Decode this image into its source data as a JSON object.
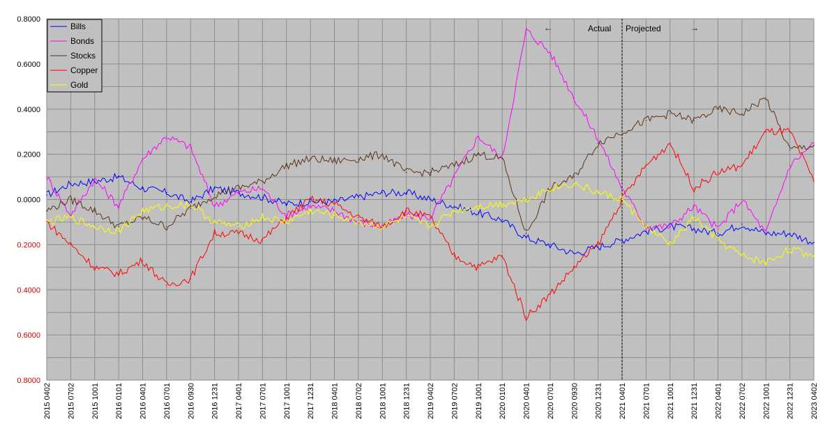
{
  "chart_data": {
    "type": "line",
    "ylim": [
      -0.8,
      0.8
    ],
    "y_ticks": [
      "0.8000",
      "0.6000",
      "0.4000",
      "0.2000",
      "0.0000",
      "0.2000",
      "0.4000",
      "0.6000",
      "0.8000"
    ],
    "x_ticks": [
      "2015 0402",
      "2015 0702",
      "2015 1001",
      "2016 0101",
      "2016 0401",
      "2016 0701",
      "2016 0930",
      "2016 1231",
      "2017 0401",
      "2017 0701",
      "2017 1001",
      "2017 1231",
      "2018 0401",
      "2018 0702",
      "2018 1001",
      "2018 1231",
      "2019 0402",
      "2019 0702",
      "2019 1001",
      "2020 0101",
      "2020 0401",
      "2020 0701",
      "2020 0930",
      "2020 1231",
      "2021 0401",
      "2021 0701",
      "2021 1001",
      "2021 1231",
      "2022 0401",
      "2022 0702",
      "2022 1001",
      "2022 1231",
      "2023 0402"
    ],
    "grid": true,
    "legend_position": "top-left",
    "plot_background": "#c0c0c0",
    "divider_at": "2021 0401",
    "annotations": {
      "actual": "Actual",
      "projected": "Projected",
      "left_arrow": "←",
      "right_arrow": "→"
    },
    "series": [
      {
        "name": "Bills",
        "color": "#0000ff",
        "values": [
          0.02,
          0.07,
          0.08,
          0.1,
          0.05,
          0.03,
          -0.01,
          0.05,
          0.03,
          0.01,
          -0.02,
          -0.01,
          -0.01,
          0.01,
          0.03,
          0.03,
          0.0,
          -0.03,
          -0.06,
          -0.09,
          -0.17,
          -0.2,
          -0.24,
          -0.21,
          -0.18,
          -0.14,
          -0.12,
          -0.13,
          -0.15,
          -0.11,
          -0.15,
          -0.15,
          -0.19
        ]
      },
      {
        "name": "Bonds",
        "color": "#ff00ff",
        "values": [
          0.1,
          -0.07,
          0.09,
          -0.03,
          0.18,
          0.28,
          0.23,
          -0.03,
          0.03,
          0.05,
          -0.07,
          -0.03,
          -0.05,
          -0.1,
          -0.12,
          -0.07,
          -0.08,
          0.1,
          0.28,
          0.18,
          0.75,
          0.65,
          0.45,
          0.27,
          0.05,
          -0.12,
          -0.12,
          -0.03,
          -0.13,
          0.0,
          -0.15,
          0.15,
          0.25
        ]
      },
      {
        "name": "Stocks",
        "color": "#5c3317",
        "values": [
          -0.05,
          0.0,
          -0.05,
          -0.12,
          -0.08,
          -0.12,
          -0.04,
          0.02,
          0.05,
          0.08,
          0.15,
          0.18,
          0.17,
          0.18,
          0.2,
          0.12,
          0.12,
          0.15,
          0.2,
          0.18,
          -0.15,
          0.05,
          0.1,
          0.25,
          0.3,
          0.35,
          0.38,
          0.35,
          0.4,
          0.38,
          0.45,
          0.22,
          0.24
        ]
      },
      {
        "name": "Copper",
        "color": "#ff0000",
        "values": [
          -0.1,
          -0.2,
          -0.3,
          -0.33,
          -0.27,
          -0.38,
          -0.35,
          -0.15,
          -0.15,
          -0.18,
          -0.08,
          0.0,
          -0.02,
          -0.08,
          -0.12,
          -0.05,
          -0.08,
          -0.25,
          -0.3,
          -0.25,
          -0.52,
          -0.42,
          -0.3,
          -0.2,
          0.0,
          0.15,
          0.25,
          0.05,
          0.12,
          0.15,
          0.3,
          0.3,
          0.08
        ]
      },
      {
        "name": "Gold",
        "color": "#ffff00",
        "values": [
          -0.1,
          -0.08,
          -0.12,
          -0.14,
          -0.05,
          -0.03,
          -0.02,
          -0.1,
          -0.12,
          -0.08,
          -0.1,
          -0.05,
          -0.07,
          -0.1,
          -0.12,
          -0.08,
          -0.12,
          -0.05,
          -0.03,
          -0.02,
          0.0,
          0.05,
          0.07,
          0.03,
          0.0,
          -0.12,
          -0.2,
          -0.08,
          -0.18,
          -0.25,
          -0.28,
          -0.22,
          -0.25
        ]
      }
    ]
  }
}
